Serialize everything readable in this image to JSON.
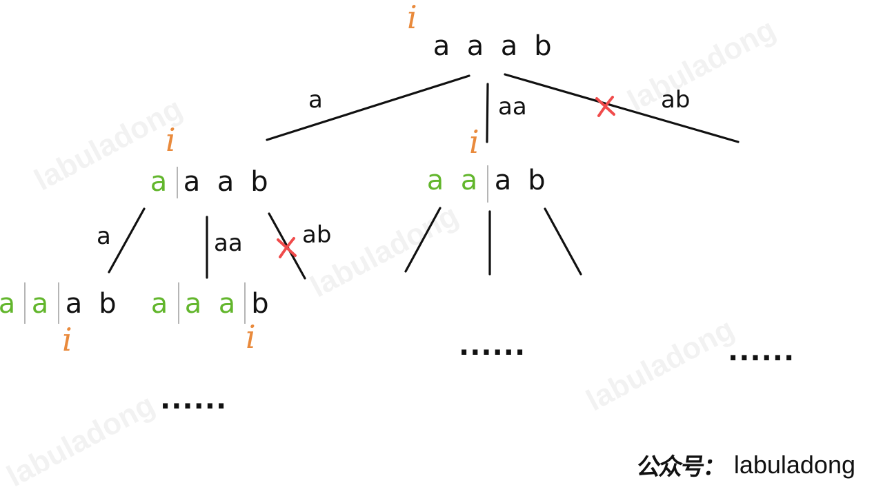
{
  "watermark": "labuladong",
  "index_symbol": "i",
  "colors": {
    "consumed": "#62b62c",
    "index": "#e98a3c",
    "cross": "#f04b4b",
    "ink": "#111111"
  },
  "root": {
    "chars": [
      "a",
      "a",
      "a",
      "b"
    ]
  },
  "root_edges": [
    {
      "label": "a",
      "pruned": false
    },
    {
      "label": "aa",
      "pruned": false
    },
    {
      "label": "ab",
      "pruned": true
    }
  ],
  "left_node": {
    "chars": [
      "a",
      "a",
      "a",
      "b"
    ],
    "consumed": 1
  },
  "left_edges": [
    {
      "label": "a",
      "pruned": false
    },
    {
      "label": "aa",
      "pruned": false
    },
    {
      "label": "ab",
      "pruned": true
    }
  ],
  "middle_node": {
    "chars": [
      "a",
      "a",
      "a",
      "b"
    ],
    "consumed": 2
  },
  "leaf_1": {
    "chars": [
      "a",
      "a",
      "a",
      "b"
    ],
    "consumed": 2
  },
  "leaf_2": {
    "chars": [
      "a",
      "a",
      "a",
      "b"
    ],
    "consumed": 3
  },
  "ellipsis": "......",
  "footer": {
    "prefix": "公众号：",
    "name": "labuladong"
  }
}
